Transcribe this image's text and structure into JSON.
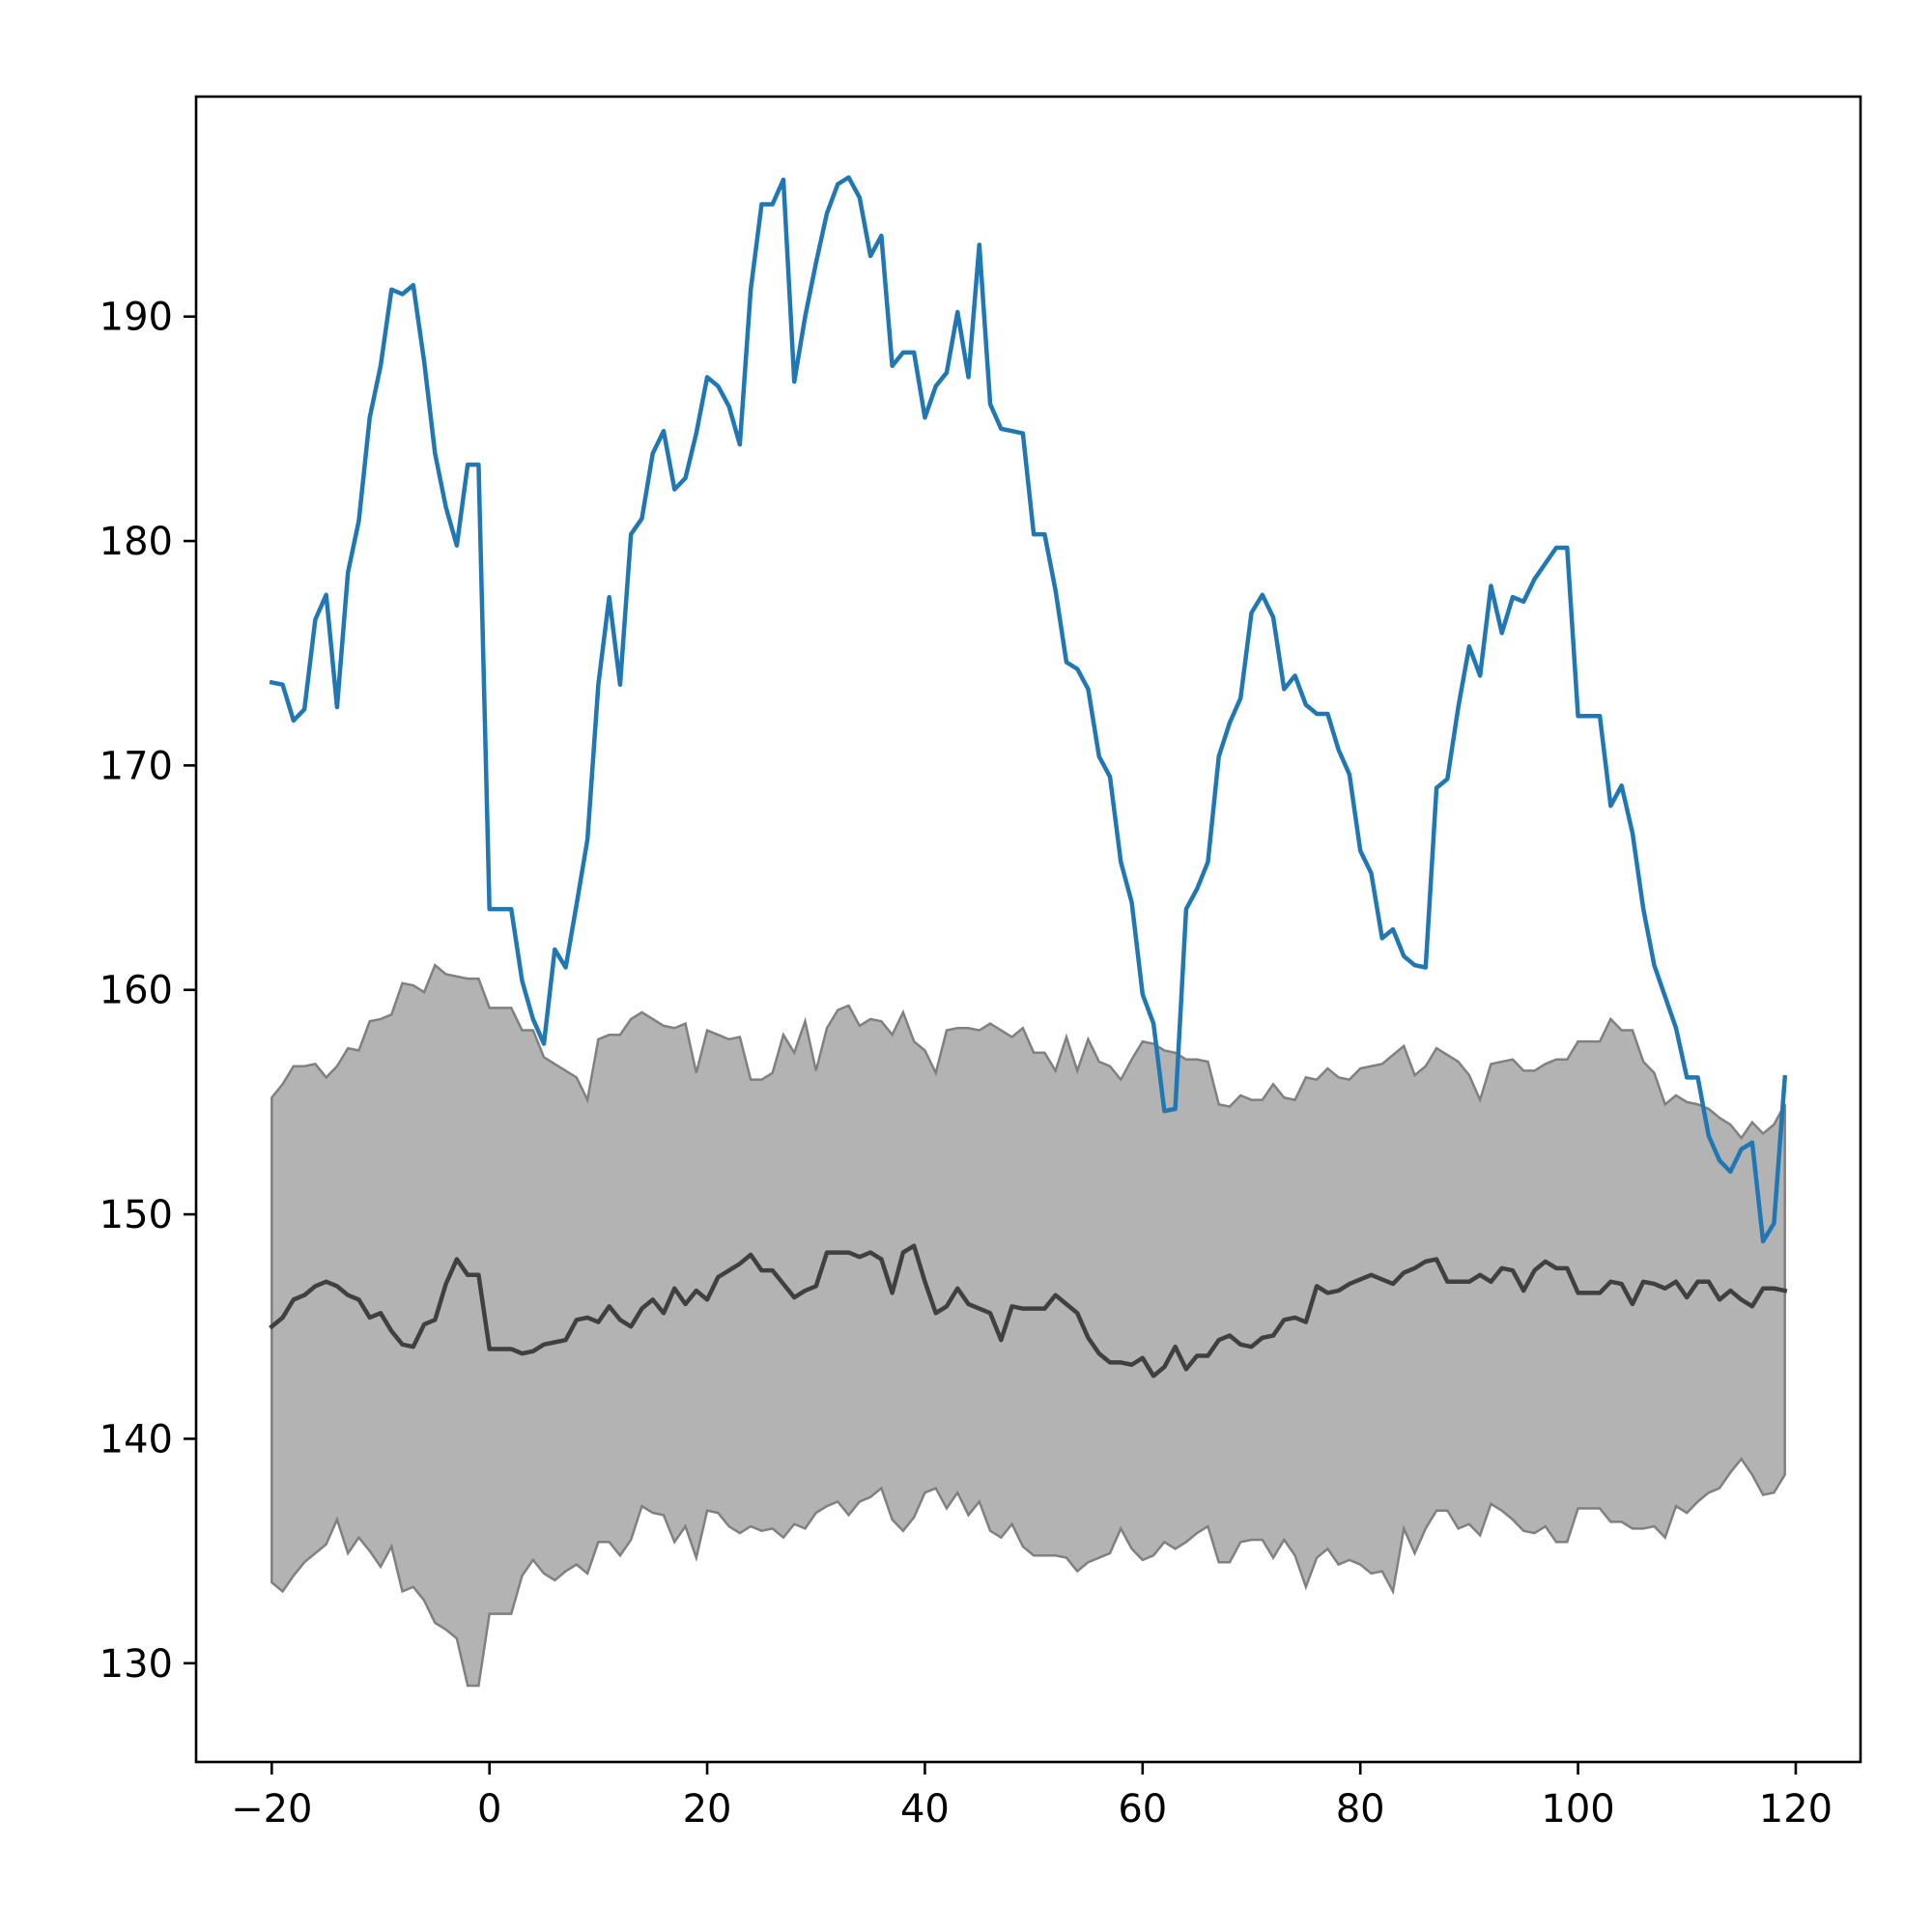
{
  "chart_data": {
    "type": "line",
    "x": [
      -20,
      -19,
      -18,
      -17,
      -16,
      -15,
      -14,
      -13,
      -12,
      -11,
      -10,
      -9,
      -8,
      -7,
      -6,
      -5,
      -4,
      -3,
      -2,
      -1,
      0,
      1,
      2,
      3,
      4,
      5,
      6,
      7,
      8,
      9,
      10,
      11,
      12,
      13,
      14,
      15,
      16,
      17,
      18,
      19,
      20,
      21,
      22,
      23,
      24,
      25,
      26,
      27,
      28,
      29,
      30,
      31,
      32,
      33,
      34,
      35,
      36,
      37,
      38,
      39,
      40,
      41,
      42,
      43,
      44,
      45,
      46,
      47,
      48,
      49,
      50,
      51,
      52,
      53,
      54,
      55,
      56,
      57,
      58,
      59,
      60,
      61,
      62,
      63,
      64,
      65,
      66,
      67,
      68,
      69,
      70,
      71,
      72,
      73,
      74,
      75,
      76,
      77,
      78,
      79,
      80,
      81,
      82,
      83,
      84,
      85,
      86,
      87,
      88,
      89,
      90,
      91,
      92,
      93,
      94,
      95,
      96,
      97,
      98,
      99,
      100,
      101,
      102,
      103,
      104,
      105,
      106,
      107,
      108,
      109,
      110,
      111,
      112,
      113,
      114,
      115,
      116,
      117,
      118,
      119
    ],
    "band": {
      "color": "#808080",
      "upper": [
        155.2,
        155.8,
        156.6,
        156.6,
        156.7,
        156.1,
        156.6,
        157.4,
        157.3,
        158.6,
        158.7,
        158.9,
        160.3,
        160.2,
        159.9,
        161.1,
        160.7,
        160.6,
        160.5,
        160.5,
        159.2,
        159.2,
        159.2,
        158.2,
        158.2,
        157.0,
        156.7,
        156.4,
        156.1,
        155.1,
        157.8,
        158.0,
        158.0,
        158.7,
        159.0,
        158.7,
        158.4,
        158.3,
        158.5,
        156.3,
        158.2,
        158.0,
        157.8,
        157.9,
        156.0,
        156.0,
        156.3,
        158.0,
        157.2,
        158.6,
        156.4,
        158.3,
        159.1,
        159.3,
        158.4,
        158.7,
        158.6,
        158.0,
        159.0,
        157.7,
        157.3,
        156.3,
        158.2,
        158.3,
        158.3,
        158.2,
        158.5,
        158.2,
        157.9,
        158.3,
        157.2,
        157.2,
        156.4,
        157.9,
        156.4,
        157.8,
        156.8,
        156.6,
        156.0,
        156.9,
        157.7,
        157.6,
        157.3,
        157.2,
        156.9,
        156.9,
        156.8,
        154.9,
        154.8,
        155.3,
        155.1,
        155.1,
        155.8,
        155.2,
        155.1,
        156.1,
        156.0,
        156.5,
        156.1,
        156.0,
        156.5,
        156.6,
        156.7,
        157.1,
        157.5,
        156.2,
        156.6,
        157.4,
        157.1,
        156.8,
        156.2,
        155.1,
        156.7,
        156.8,
        156.9,
        156.4,
        156.4,
        156.7,
        156.9,
        156.9,
        157.7,
        157.7,
        157.7,
        158.7,
        158.2,
        158.2,
        156.8,
        156.3,
        154.9,
        155.3,
        155.0,
        154.9,
        154.7,
        154.3,
        154.0,
        153.4,
        154.1,
        153.6,
        154.0,
        154.9
      ],
      "lower": [
        133.6,
        133.2,
        133.9,
        134.5,
        134.9,
        135.3,
        136.4,
        134.9,
        135.6,
        135.0,
        134.3,
        135.2,
        133.2,
        133.4,
        132.8,
        131.8,
        131.5,
        131.1,
        129.0,
        129.0,
        132.2,
        132.2,
        132.2,
        133.9,
        134.6,
        134.0,
        133.7,
        134.1,
        134.4,
        134.0,
        135.4,
        135.4,
        134.8,
        135.5,
        137.0,
        136.7,
        136.6,
        135.4,
        136.1,
        134.7,
        136.8,
        136.7,
        136.1,
        135.8,
        136.1,
        135.9,
        136.0,
        135.6,
        136.2,
        136.0,
        136.7,
        137.0,
        137.2,
        136.6,
        137.2,
        137.4,
        137.8,
        136.4,
        135.9,
        136.5,
        137.6,
        137.8,
        136.9,
        137.6,
        136.6,
        137.2,
        135.9,
        135.6,
        136.2,
        135.2,
        134.8,
        134.8,
        134.8,
        134.7,
        134.1,
        134.5,
        134.7,
        134.9,
        136.0,
        135.1,
        134.6,
        134.8,
        135.4,
        135.1,
        135.4,
        135.8,
        136.1,
        134.5,
        134.5,
        135.4,
        135.5,
        135.5,
        134.7,
        135.5,
        134.8,
        133.4,
        134.7,
        135.1,
        134.4,
        134.6,
        134.4,
        134.0,
        134.1,
        133.2,
        136.0,
        134.9,
        136.0,
        136.8,
        136.8,
        136.0,
        136.2,
        135.7,
        137.1,
        136.8,
        136.4,
        135.9,
        135.8,
        136.1,
        135.4,
        135.4,
        136.9,
        136.9,
        136.9,
        136.3,
        136.3,
        136.0,
        136.0,
        136.1,
        135.6,
        137.0,
        136.7,
        137.2,
        137.6,
        137.8,
        138.5,
        139.1,
        138.4,
        137.5,
        137.6,
        138.4
      ]
    },
    "series": [
      {
        "color": "#1f77b4",
        "values": [
          173.7,
          173.6,
          172.0,
          172.5,
          176.5,
          177.6,
          172.6,
          178.6,
          180.9,
          185.5,
          187.8,
          191.2,
          191.0,
          191.4,
          188.0,
          183.9,
          181.5,
          179.8,
          183.4,
          183.4,
          163.6,
          163.6,
          163.6,
          160.4,
          158.7,
          157.6,
          161.8,
          161.0,
          163.8,
          166.7,
          173.6,
          177.5,
          173.6,
          180.3,
          181.0,
          183.9,
          184.9,
          182.3,
          182.8,
          184.8,
          187.3,
          186.9,
          186.0,
          184.3,
          191.2,
          195.0,
          195.0,
          196.1,
          187.1,
          190.0,
          192.4,
          194.6,
          195.9,
          196.2,
          195.3,
          192.7,
          193.6,
          187.8,
          188.4,
          188.4,
          185.5,
          186.9,
          187.5,
          190.2,
          187.3,
          193.2,
          186.1,
          185.0,
          184.9,
          184.8,
          180.3,
          180.3,
          177.8,
          174.6,
          174.3,
          173.4,
          170.4,
          169.5,
          165.7,
          163.9,
          159.8,
          158.5,
          154.6,
          154.7,
          163.6,
          164.5,
          165.7,
          170.4,
          171.9,
          173.0,
          176.8,
          177.6,
          176.6,
          173.4,
          174.0,
          172.7,
          172.3,
          172.3,
          170.7,
          169.6,
          166.2,
          165.2,
          162.3,
          162.7,
          161.5,
          161.1,
          161.0,
          169.0,
          169.4,
          172.6,
          175.3,
          174.0,
          178.0,
          175.9,
          177.5,
          177.3,
          178.3,
          179.0,
          179.7,
          179.7,
          172.2,
          172.2,
          172.2,
          168.2,
          169.1,
          167.0,
          163.6,
          161.1,
          159.7,
          158.3,
          156.1,
          156.1,
          153.5,
          152.4,
          151.9,
          152.9,
          153.2,
          148.8,
          149.6,
          156.1
        ]
      },
      {
        "color": "#404040",
        "values": [
          145.0,
          145.4,
          146.2,
          146.4,
          146.8,
          147.0,
          146.8,
          146.4,
          146.2,
          145.4,
          145.6,
          144.8,
          144.2,
          144.1,
          145.1,
          145.3,
          146.9,
          148.0,
          147.3,
          147.3,
          144.0,
          144.0,
          144.0,
          143.8,
          143.9,
          144.2,
          144.3,
          144.4,
          145.3,
          145.4,
          145.2,
          145.9,
          145.3,
          145.0,
          145.8,
          146.2,
          145.6,
          146.7,
          146.0,
          146.6,
          146.2,
          147.2,
          147.5,
          147.8,
          148.2,
          147.5,
          147.5,
          146.9,
          146.3,
          146.6,
          146.8,
          148.3,
          148.3,
          148.3,
          148.1,
          148.3,
          148.0,
          146.5,
          148.3,
          148.6,
          147.0,
          145.6,
          145.9,
          146.7,
          146.0,
          145.8,
          145.6,
          144.4,
          145.9,
          145.8,
          145.8,
          145.8,
          146.4,
          146.0,
          145.6,
          144.5,
          143.8,
          143.4,
          143.4,
          143.3,
          143.6,
          142.8,
          143.2,
          144.1,
          143.1,
          143.7,
          143.7,
          144.4,
          144.6,
          144.2,
          144.1,
          144.5,
          144.6,
          145.3,
          145.4,
          145.2,
          146.8,
          146.5,
          146.6,
          146.9,
          147.1,
          147.3,
          147.1,
          146.9,
          147.4,
          147.6,
          147.9,
          148.0,
          147.0,
          147.0,
          147.0,
          147.3,
          147.0,
          147.6,
          147.5,
          146.6,
          147.5,
          147.9,
          147.6,
          147.6,
          146.5,
          146.5,
          146.5,
          147.0,
          146.9,
          146.0,
          147.0,
          146.9,
          146.7,
          147.0,
          146.3,
          147.0,
          147.0,
          146.2,
          146.6,
          146.2,
          145.9,
          146.7,
          146.7,
          146.6
        ]
      }
    ],
    "xlim": [
      -26.95,
      125.95
    ],
    "ylim": [
      125.6,
      199.8
    ],
    "xticks": [
      {
        "value": -20,
        "label": "−20"
      },
      0,
      20,
      40,
      60,
      80,
      100,
      120
    ],
    "yticks": [
      130,
      140,
      150,
      160,
      170,
      180,
      190
    ],
    "grid": false
  }
}
